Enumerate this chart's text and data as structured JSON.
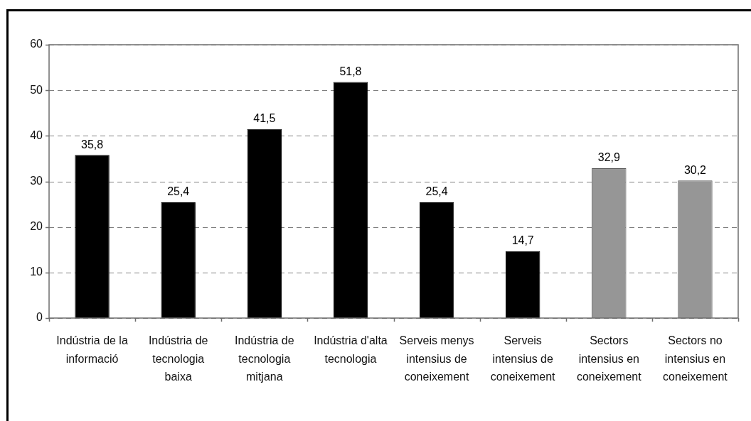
{
  "chart_data": {
    "type": "bar",
    "categories": [
      "Indústria de la informació",
      "Indústria de tecnologia baixa",
      "Indústria de tecnologia mitjana",
      "Indústria d'alta tecnologia",
      "Serveis menys intensius de coneixement",
      "Serveis intensius de coneixement",
      "Sectors intensius en coneixement",
      "Sectors no intensius en coneixement"
    ],
    "values": [
      35.8,
      25.4,
      41.5,
      51.8,
      25.4,
      14.7,
      32.9,
      30.2
    ],
    "colors": [
      "#000000",
      "#000000",
      "#000000",
      "#000000",
      "#000000",
      "#000000",
      "#969696",
      "#969696"
    ],
    "value_labels": [
      "35,8",
      "25,4",
      "41,5",
      "51,8",
      "25,4",
      "14,7",
      "32,9",
      "30,2"
    ],
    "ylim": [
      0,
      60
    ],
    "yticks": [
      0,
      10,
      20,
      30,
      40,
      50,
      60
    ],
    "grid": "y"
  }
}
